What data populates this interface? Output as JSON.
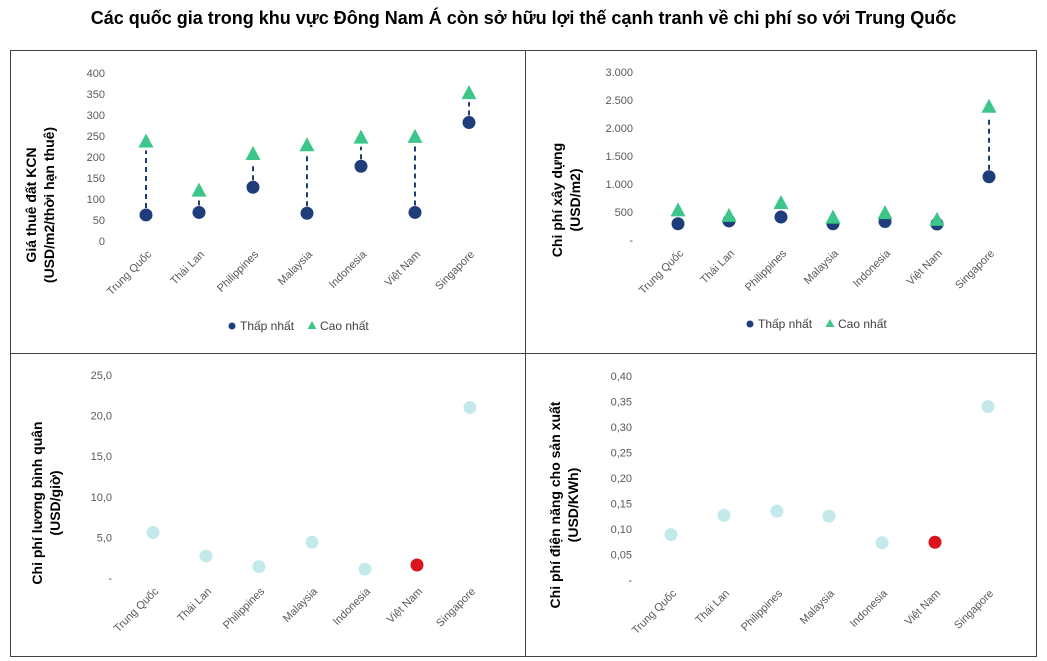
{
  "title": "Các quốc gia trong khu vực Đông Nam Á còn sở hữu lợi thế cạnh tranh về chi phí so với Trung Quốc",
  "colors": {
    "low_marker": "#1f3d7a",
    "high_marker": "#3cc68a",
    "connector": "#1f3d7a",
    "point_default": "#c3e9ea",
    "point_highlight": "#d9141c",
    "panel_border": "#404040",
    "gridline": "#e6e6e6"
  },
  "chart_data": [
    {
      "type": "scatter",
      "ylabel_lines": [
        "Giá thuê đất KCN",
        "(USD/m2/thời hạn thuê)"
      ],
      "categories": [
        "Trung Quốc",
        "Thái Lan",
        "Philippines",
        "Malaysia",
        "Indonesia",
        "Việt Nam",
        "Singapore"
      ],
      "yticks": [
        "0",
        "50",
        "100",
        "150",
        "200",
        "250",
        "300",
        "350",
        "400"
      ],
      "ylim": [
        0,
        400
      ],
      "series": [
        {
          "name": "Thấp nhất",
          "values": [
            62,
            68,
            128,
            66,
            178,
            68,
            282
          ]
        },
        {
          "name": "Cao nhất",
          "values": [
            237,
            120,
            207,
            228,
            246,
            248,
            352
          ]
        }
      ],
      "legend": "bottom"
    },
    {
      "type": "scatter",
      "ylabel_lines": [
        "Chi phí xây dựng",
        "(USD/m2)"
      ],
      "categories": [
        "Trung Quốc",
        "Thái Lan",
        "Philippines",
        "Malaysia",
        "Indonesia",
        "Việt Nam",
        "Singapore"
      ],
      "yticks": [
        "-",
        "500",
        "1.000",
        "1.500",
        "2.000",
        "2.500",
        "3.000"
      ],
      "ylim": [
        0,
        3000
      ],
      "series": [
        {
          "name": "Thấp nhất",
          "values": [
            290,
            340,
            410,
            290,
            330,
            285,
            1130
          ]
        },
        {
          "name": "Cao nhất",
          "values": [
            530,
            430,
            660,
            400,
            480,
            360,
            2380
          ]
        }
      ],
      "legend": "bottom"
    },
    {
      "type": "scatter",
      "ylabel_lines": [
        "Chi phí lương bình quân",
        "(USD/giờ)"
      ],
      "categories": [
        "Trung Quốc",
        "Thái Lan",
        "Philippines",
        "Malaysia",
        "Indonesia",
        "Việt Nam",
        "Singapore"
      ],
      "yticks": [
        "-",
        "5,0",
        "10,0",
        "15,0",
        "20,0",
        "25,0"
      ],
      "ylim": [
        0,
        25
      ],
      "values": [
        5.6,
        2.7,
        1.4,
        4.4,
        1.1,
        1.6,
        21.0
      ],
      "highlight": "Việt Nam"
    },
    {
      "type": "scatter",
      "ylabel_lines": [
        "Chi phí điện năng cho sản xuất",
        "(USD/KWh)"
      ],
      "categories": [
        "Trung Quốc",
        "Thái Lan",
        "Philippines",
        "Malaysia",
        "Indonesia",
        "Việt Nam",
        "Singapore"
      ],
      "yticks": [
        "-",
        "0,05",
        "0,10",
        "0,15",
        "0,20",
        "0,25",
        "0,30",
        "0,35",
        "0,40"
      ],
      "ylim": [
        0,
        0.4
      ],
      "values": [
        0.089,
        0.127,
        0.135,
        0.125,
        0.073,
        0.074,
        0.34
      ],
      "highlight": "Việt Nam"
    }
  ]
}
